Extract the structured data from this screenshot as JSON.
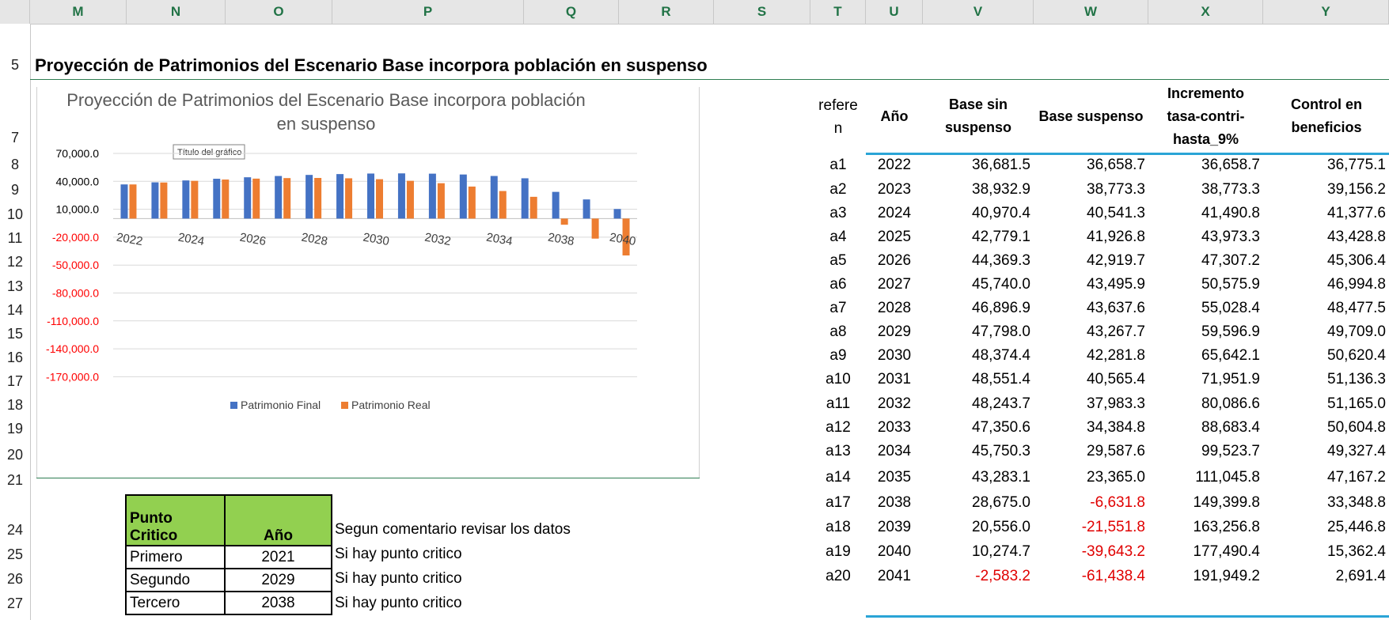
{
  "columns": [
    "M",
    "N",
    "O",
    "P",
    "Q",
    "R",
    "S",
    "T",
    "U",
    "V",
    "W",
    "X",
    "Y"
  ],
  "rows": [
    "5",
    "7",
    "8",
    "9",
    "10",
    "11",
    "12",
    "13",
    "14",
    "15",
    "16",
    "17",
    "18",
    "19",
    "20",
    "21",
    "24",
    "25",
    "26",
    "27"
  ],
  "sheet_title": "Proyección de Patrimonios del Escenario Base incorpora población en suspenso",
  "chart_tooltip": "Título del gráfico",
  "chart_data": {
    "type": "bar",
    "title": "Proyección de Patrimonios del Escenario Base incorpora población en suspenso",
    "x_tick_labels": [
      "2022",
      "2024",
      "2026",
      "2028",
      "2030",
      "2032",
      "2034",
      "2038",
      "2040"
    ],
    "y_tick_labels": [
      "70,000.0",
      "40,000.0",
      "10,000.0",
      "-20,000.0",
      "-50,000.0",
      "-80,000.0",
      "-110,000.0",
      "-140,000.0",
      "-170,000.0"
    ],
    "ylim": [
      -170000,
      70000
    ],
    "grid": true,
    "legend_position": "bottom",
    "categories": [
      "2022",
      "2023",
      "2024",
      "2025",
      "2026",
      "2027",
      "2028",
      "2029",
      "2030",
      "2031",
      "2032",
      "2033",
      "2034",
      "2035",
      "2038",
      "2039",
      "2040"
    ],
    "series": [
      {
        "name": "Patrimonio Final",
        "color": "#4472c4",
        "values": [
          36681.5,
          38932.9,
          40970.4,
          42779.1,
          44369.3,
          45740.0,
          46896.9,
          47798.0,
          48374.4,
          48551.4,
          48243.7,
          47350.6,
          45750.3,
          43283.1,
          28675.0,
          20556.0,
          10274.7
        ]
      },
      {
        "name": "Patrimonio Real",
        "color": "#ed7d31",
        "values": [
          36658.7,
          38773.3,
          40541.3,
          41926.8,
          42919.7,
          43495.9,
          43637.6,
          43267.7,
          42281.8,
          40565.4,
          37983.3,
          34384.8,
          29587.6,
          23365.0,
          -6631.8,
          -21551.8,
          -39643.2
        ]
      }
    ]
  },
  "data_table": {
    "headers": {
      "ref": "refere n",
      "year": "Año",
      "base": "Base sin suspenso",
      "susp": "Base suspenso",
      "incr": "Incremento tasa-contri-hasta_9%",
      "ctrl": "Control en beneficios"
    },
    "rows": [
      {
        "ref": "a1",
        "year": "2022",
        "base": "36,681.5",
        "susp": "36,658.7",
        "incr": "36,658.7",
        "ctrl": "36,775.1"
      },
      {
        "ref": "a2",
        "year": "2023",
        "base": "38,932.9",
        "susp": "38,773.3",
        "incr": "38,773.3",
        "ctrl": "39,156.2"
      },
      {
        "ref": "a3",
        "year": "2024",
        "base": "40,970.4",
        "susp": "40,541.3",
        "incr": "41,490.8",
        "ctrl": "41,377.6"
      },
      {
        "ref": "a4",
        "year": "2025",
        "base": "42,779.1",
        "susp": "41,926.8",
        "incr": "43,973.3",
        "ctrl": "43,428.8"
      },
      {
        "ref": "a5",
        "year": "2026",
        "base": "44,369.3",
        "susp": "42,919.7",
        "incr": "47,307.2",
        "ctrl": "45,306.4"
      },
      {
        "ref": "a6",
        "year": "2027",
        "base": "45,740.0",
        "susp": "43,495.9",
        "incr": "50,575.9",
        "ctrl": "46,994.8"
      },
      {
        "ref": "a7",
        "year": "2028",
        "base": "46,896.9",
        "susp": "43,637.6",
        "incr": "55,028.4",
        "ctrl": "48,477.5"
      },
      {
        "ref": "a8",
        "year": "2029",
        "base": "47,798.0",
        "susp": "43,267.7",
        "incr": "59,596.9",
        "ctrl": "49,709.0"
      },
      {
        "ref": "a9",
        "year": "2030",
        "base": "48,374.4",
        "susp": "42,281.8",
        "incr": "65,642.1",
        "ctrl": "50,620.4"
      },
      {
        "ref": "a10",
        "year": "2031",
        "base": "48,551.4",
        "susp": "40,565.4",
        "incr": "71,951.9",
        "ctrl": "51,136.3"
      },
      {
        "ref": "a11",
        "year": "2032",
        "base": "48,243.7",
        "susp": "37,983.3",
        "incr": "80,086.6",
        "ctrl": "51,165.0"
      },
      {
        "ref": "a12",
        "year": "2033",
        "base": "47,350.6",
        "susp": "34,384.8",
        "incr": "88,683.4",
        "ctrl": "50,604.8"
      },
      {
        "ref": "a13",
        "year": "2034",
        "base": "45,750.3",
        "susp": "29,587.6",
        "incr": "99,523.7",
        "ctrl": "49,327.4"
      },
      {
        "ref": "a14",
        "year": "2035",
        "base": "43,283.1",
        "susp": "23,365.0",
        "incr": "111,045.8",
        "ctrl": "47,167.2"
      },
      {
        "ref": "a17",
        "year": "2038",
        "base": "28,675.0",
        "susp": "-6,631.8",
        "incr": "149,399.8",
        "ctrl": "33,348.8"
      },
      {
        "ref": "a18",
        "year": "2039",
        "base": "20,556.0",
        "susp": "-21,551.8",
        "incr": "163,256.8",
        "ctrl": "25,446.8"
      },
      {
        "ref": "a19",
        "year": "2040",
        "base": "10,274.7",
        "susp": "-39,643.2",
        "incr": "177,490.4",
        "ctrl": "15,362.4"
      },
      {
        "ref": "a20",
        "year": "2041",
        "base": "-2,583.2",
        "susp": "-61,438.4",
        "incr": "191,949.2",
        "ctrl": "2,691.4"
      }
    ]
  },
  "critical_table": {
    "header_col1": "Punto Critico",
    "header_col2": "Año",
    "rows": [
      {
        "label": "Primero",
        "year": "2021"
      },
      {
        "label": "Segundo",
        "year": "2029"
      },
      {
        "label": "Tercero",
        "year": "2038"
      }
    ]
  },
  "notes": [
    "Segun comentario revisar los datos",
    "Si hay punto critico",
    "Si hay punto critico",
    "Si hay punto critico"
  ]
}
